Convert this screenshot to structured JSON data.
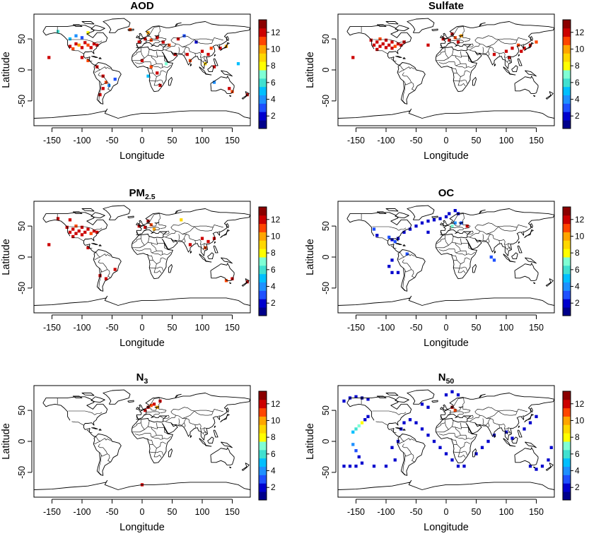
{
  "colorbar": {
    "tick_labels": [
      "2",
      "4",
      "6",
      "8",
      "10",
      "12"
    ],
    "range": [
      1,
      13
    ],
    "colors": [
      "#00008b",
      "#0000cd",
      "#1e50ff",
      "#1e90ff",
      "#00bfff",
      "#40e0d0",
      "#7fffd4",
      "#ffff00",
      "#ffd700",
      "#ffa500",
      "#ff4500",
      "#cc0000",
      "#8b0000"
    ]
  },
  "axes": {
    "xlabel": "Longitude",
    "ylabel": "Latitude",
    "x_ticks": [
      "-150",
      "-100",
      "-50",
      "0",
      "50",
      "100",
      "150"
    ],
    "y_ticks": [
      "50",
      "0",
      "-50"
    ],
    "xlim": [
      -180,
      180
    ],
    "ylim": [
      -90,
      90
    ]
  },
  "chart_data": [
    {
      "type": "heatmap",
      "title": "AOD",
      "title_sub": "",
      "cells": [
        {
          "lon": -120,
          "lat": 38,
          "v": 12
        },
        {
          "lon": -115,
          "lat": 34,
          "v": 11
        },
        {
          "lon": -110,
          "lat": 42,
          "v": 12
        },
        {
          "lon": -105,
          "lat": 40,
          "v": 10
        },
        {
          "lon": -100,
          "lat": 36,
          "v": 12
        },
        {
          "lon": -95,
          "lat": 44,
          "v": 12
        },
        {
          "lon": -90,
          "lat": 40,
          "v": 11
        },
        {
          "lon": -85,
          "lat": 36,
          "v": 12
        },
        {
          "lon": -80,
          "lat": 42,
          "v": 12
        },
        {
          "lon": -75,
          "lat": 40,
          "v": 12
        },
        {
          "lon": -120,
          "lat": 50,
          "v": 5
        },
        {
          "lon": -110,
          "lat": 55,
          "v": 4
        },
        {
          "lon": -100,
          "lat": 52,
          "v": 3
        },
        {
          "lon": -90,
          "lat": 60,
          "v": 8
        },
        {
          "lon": -140,
          "lat": 62,
          "v": 6
        },
        {
          "lon": -100,
          "lat": 20,
          "v": 12
        },
        {
          "lon": -90,
          "lat": 15,
          "v": 11
        },
        {
          "lon": -75,
          "lat": 5,
          "v": 12
        },
        {
          "lon": -65,
          "lat": -10,
          "v": 12
        },
        {
          "lon": -60,
          "lat": -20,
          "v": 11
        },
        {
          "lon": -65,
          "lat": -30,
          "v": 12
        },
        {
          "lon": -70,
          "lat": -40,
          "v": 12
        },
        {
          "lon": -55,
          "lat": -25,
          "v": 4
        },
        {
          "lon": -45,
          "lat": -15,
          "v": 3
        },
        {
          "lon": -5,
          "lat": 45,
          "v": 12
        },
        {
          "lon": 5,
          "lat": 50,
          "v": 12
        },
        {
          "lon": 15,
          "lat": 48,
          "v": 11
        },
        {
          "lon": 25,
          "lat": 52,
          "v": 12
        },
        {
          "lon": 10,
          "lat": 60,
          "v": 10
        },
        {
          "lon": 35,
          "lat": 45,
          "v": 12
        },
        {
          "lon": 45,
          "lat": 40,
          "v": 11
        },
        {
          "lon": 0,
          "lat": 15,
          "v": 12
        },
        {
          "lon": 15,
          "lat": 5,
          "v": 11
        },
        {
          "lon": 25,
          "lat": -5,
          "v": 12
        },
        {
          "lon": 30,
          "lat": -25,
          "v": 12
        },
        {
          "lon": 10,
          "lat": -10,
          "v": 5
        },
        {
          "lon": 40,
          "lat": 10,
          "v": 7
        },
        {
          "lon": 55,
          "lat": 25,
          "v": 12
        },
        {
          "lon": 75,
          "lat": 25,
          "v": 12
        },
        {
          "lon": 80,
          "lat": 15,
          "v": 11
        },
        {
          "lon": 90,
          "lat": 45,
          "v": 2
        },
        {
          "lon": 100,
          "lat": 30,
          "v": 12
        },
        {
          "lon": 110,
          "lat": 25,
          "v": 12
        },
        {
          "lon": 115,
          "lat": 35,
          "v": 11
        },
        {
          "lon": 120,
          "lat": 5,
          "v": 12
        },
        {
          "lon": 105,
          "lat": 10,
          "v": 9
        },
        {
          "lon": 130,
          "lat": 35,
          "v": 12
        },
        {
          "lon": 140,
          "lat": 38,
          "v": 10
        },
        {
          "lon": 145,
          "lat": -30,
          "v": 12
        },
        {
          "lon": 150,
          "lat": -35,
          "v": 11
        },
        {
          "lon": 120,
          "lat": -20,
          "v": 4
        },
        {
          "lon": 175,
          "lat": -40,
          "v": 12
        },
        {
          "lon": -155,
          "lat": 20,
          "v": 12
        },
        {
          "lon": 70,
          "lat": 55,
          "v": 3
        },
        {
          "lon": 60,
          "lat": 50,
          "v": 12
        },
        {
          "lon": -20,
          "lat": 65,
          "v": 11
        },
        {
          "lon": 160,
          "lat": 10,
          "v": 5
        }
      ]
    },
    {
      "type": "heatmap",
      "title": "Sulfate",
      "title_sub": "",
      "cells": [
        {
          "lon": -120,
          "lat": 40,
          "v": 12
        },
        {
          "lon": -115,
          "lat": 45,
          "v": 12
        },
        {
          "lon": -110,
          "lat": 38,
          "v": 12
        },
        {
          "lon": -105,
          "lat": 42,
          "v": 12
        },
        {
          "lon": -100,
          "lat": 36,
          "v": 12
        },
        {
          "lon": -95,
          "lat": 40,
          "v": 12
        },
        {
          "lon": -90,
          "lat": 45,
          "v": 12
        },
        {
          "lon": -85,
          "lat": 38,
          "v": 11
        },
        {
          "lon": -80,
          "lat": 42,
          "v": 12
        },
        {
          "lon": -75,
          "lat": 40,
          "v": 12
        },
        {
          "lon": -70,
          "lat": 45,
          "v": 12
        },
        {
          "lon": -110,
          "lat": 50,
          "v": 11
        },
        {
          "lon": -100,
          "lat": 48,
          "v": 12
        },
        {
          "lon": -90,
          "lat": 35,
          "v": 12
        },
        {
          "lon": -115,
          "lat": 33,
          "v": 12
        },
        {
          "lon": -125,
          "lat": 48,
          "v": 12
        },
        {
          "lon": -5,
          "lat": 50,
          "v": 12
        },
        {
          "lon": 5,
          "lat": 48,
          "v": 12
        },
        {
          "lon": 15,
          "lat": 52,
          "v": 11
        },
        {
          "lon": 10,
          "lat": 58,
          "v": 12
        },
        {
          "lon": 20,
          "lat": 45,
          "v": 12
        },
        {
          "lon": 25,
          "lat": 55,
          "v": 10
        },
        {
          "lon": 100,
          "lat": 30,
          "v": 12
        },
        {
          "lon": 110,
          "lat": 35,
          "v": 12
        },
        {
          "lon": 120,
          "lat": 40,
          "v": 11
        },
        {
          "lon": 125,
          "lat": 30,
          "v": 12
        },
        {
          "lon": 105,
          "lat": 20,
          "v": 12
        },
        {
          "lon": 130,
          "lat": 35,
          "v": 12
        },
        {
          "lon": 80,
          "lat": 25,
          "v": 12
        },
        {
          "lon": -155,
          "lat": 20,
          "v": 12
        },
        {
          "lon": -30,
          "lat": 40,
          "v": 12
        },
        {
          "lon": 140,
          "lat": 40,
          "v": 12
        },
        {
          "lon": 150,
          "lat": 45,
          "v": 11
        }
      ]
    },
    {
      "type": "heatmap",
      "title": "PM",
      "title_sub": "2.5",
      "cells": [
        {
          "lon": -120,
          "lat": 40,
          "v": 12
        },
        {
          "lon": -115,
          "lat": 45,
          "v": 12
        },
        {
          "lon": -110,
          "lat": 38,
          "v": 12
        },
        {
          "lon": -105,
          "lat": 42,
          "v": 12
        },
        {
          "lon": -100,
          "lat": 36,
          "v": 12
        },
        {
          "lon": -95,
          "lat": 40,
          "v": 12
        },
        {
          "lon": -90,
          "lat": 45,
          "v": 12
        },
        {
          "lon": -85,
          "lat": 38,
          "v": 11
        },
        {
          "lon": -80,
          "lat": 42,
          "v": 12
        },
        {
          "lon": -75,
          "lat": 40,
          "v": 12
        },
        {
          "lon": -110,
          "lat": 50,
          "v": 11
        },
        {
          "lon": -100,
          "lat": 48,
          "v": 12
        },
        {
          "lon": -125,
          "lat": 48,
          "v": 12
        },
        {
          "lon": -115,
          "lat": 33,
          "v": 12
        },
        {
          "lon": -120,
          "lat": 60,
          "v": 12
        },
        {
          "lon": -140,
          "lat": 62,
          "v": 12
        },
        {
          "lon": -5,
          "lat": 50,
          "v": 12
        },
        {
          "lon": 5,
          "lat": 48,
          "v": 12
        },
        {
          "lon": 15,
          "lat": 52,
          "v": 11
        },
        {
          "lon": 10,
          "lat": 58,
          "v": 12
        },
        {
          "lon": 20,
          "lat": 45,
          "v": 10
        },
        {
          "lon": 100,
          "lat": 30,
          "v": 12
        },
        {
          "lon": 110,
          "lat": 25,
          "v": 12
        },
        {
          "lon": 120,
          "lat": 30,
          "v": 12
        },
        {
          "lon": 105,
          "lat": 15,
          "v": 11
        },
        {
          "lon": 80,
          "lat": 20,
          "v": 12
        },
        {
          "lon": 65,
          "lat": 60,
          "v": 9
        },
        {
          "lon": -155,
          "lat": 20,
          "v": 12
        },
        {
          "lon": -90,
          "lat": 15,
          "v": 12
        },
        {
          "lon": -45,
          "lat": -20,
          "v": 12
        },
        {
          "lon": -70,
          "lat": -30,
          "v": 12
        },
        {
          "lon": -60,
          "lat": -35,
          "v": 12
        },
        {
          "lon": 150,
          "lat": -35,
          "v": 12
        },
        {
          "lon": 140,
          "lat": -38,
          "v": 11
        },
        {
          "lon": 175,
          "lat": -40,
          "v": 12
        }
      ]
    },
    {
      "type": "heatmap",
      "title": "OC",
      "title_sub": "",
      "cells": [
        {
          "lon": -95,
          "lat": 32,
          "v": 3
        },
        {
          "lon": -90,
          "lat": 28,
          "v": 2
        },
        {
          "lon": -85,
          "lat": 25,
          "v": 3
        },
        {
          "lon": -80,
          "lat": 30,
          "v": 2
        },
        {
          "lon": -70,
          "lat": 40,
          "v": 2
        },
        {
          "lon": -60,
          "lat": 45,
          "v": 2
        },
        {
          "lon": -50,
          "lat": 50,
          "v": 2
        },
        {
          "lon": -40,
          "lat": 55,
          "v": 2
        },
        {
          "lon": -30,
          "lat": 58,
          "v": 2
        },
        {
          "lon": -20,
          "lat": 60,
          "v": 2
        },
        {
          "lon": -10,
          "lat": 62,
          "v": 2
        },
        {
          "lon": 0,
          "lat": 65,
          "v": 2
        },
        {
          "lon": 5,
          "lat": 70,
          "v": 2
        },
        {
          "lon": 15,
          "lat": 75,
          "v": 2
        },
        {
          "lon": 20,
          "lat": 70,
          "v": 2
        },
        {
          "lon": -90,
          "lat": -5,
          "v": 2
        },
        {
          "lon": -95,
          "lat": -15,
          "v": 2
        },
        {
          "lon": -90,
          "lat": -25,
          "v": 2
        },
        {
          "lon": -80,
          "lat": -25,
          "v": 2
        },
        {
          "lon": 75,
          "lat": 0,
          "v": 3
        },
        {
          "lon": 80,
          "lat": -5,
          "v": 3
        },
        {
          "lon": 10,
          "lat": 50,
          "v": 7
        },
        {
          "lon": 15,
          "lat": 55,
          "v": 4
        },
        {
          "lon": 25,
          "lat": 55,
          "v": 3
        },
        {
          "lon": -120,
          "lat": 45,
          "v": 3
        },
        {
          "lon": -115,
          "lat": 35,
          "v": 2
        },
        {
          "lon": -65,
          "lat": 5,
          "v": 3
        },
        {
          "lon": -30,
          "lat": 40,
          "v": 2
        },
        {
          "lon": 35,
          "lat": 50,
          "v": 12
        }
      ]
    },
    {
      "type": "heatmap",
      "title": "N",
      "title_sub": "3",
      "cells": [
        {
          "lon": 10,
          "lat": 55,
          "v": 12
        },
        {
          "lon": 15,
          "lat": 58,
          "v": 11
        },
        {
          "lon": 5,
          "lat": 50,
          "v": 12
        },
        {
          "lon": 20,
          "lat": 60,
          "v": 12
        },
        {
          "lon": 25,
          "lat": 55,
          "v": 10
        },
        {
          "lon": 0,
          "lat": -70,
          "v": 12
        },
        {
          "lon": 30,
          "lat": 65,
          "v": 12
        }
      ]
    },
    {
      "type": "heatmap",
      "title": "N",
      "title_sub": "50",
      "cells": [
        {
          "lon": -170,
          "lat": 65,
          "v": 2
        },
        {
          "lon": -160,
          "lat": 70,
          "v": 2
        },
        {
          "lon": -150,
          "lat": 72,
          "v": 2
        },
        {
          "lon": -140,
          "lat": 70,
          "v": 1
        },
        {
          "lon": -130,
          "lat": 68,
          "v": 2
        },
        {
          "lon": -155,
          "lat": 15,
          "v": 5
        },
        {
          "lon": -150,
          "lat": 20,
          "v": 6
        },
        {
          "lon": -145,
          "lat": 25,
          "v": 7
        },
        {
          "lon": -140,
          "lat": 30,
          "v": 8
        },
        {
          "lon": -135,
          "lat": 35,
          "v": 2
        },
        {
          "lon": -130,
          "lat": 40,
          "v": 2
        },
        {
          "lon": -155,
          "lat": -5,
          "v": 4
        },
        {
          "lon": -150,
          "lat": -15,
          "v": 3
        },
        {
          "lon": -145,
          "lat": -25,
          "v": 2
        },
        {
          "lon": -140,
          "lat": -35,
          "v": 2
        },
        {
          "lon": -170,
          "lat": -40,
          "v": 2
        },
        {
          "lon": -160,
          "lat": -40,
          "v": 2
        },
        {
          "lon": -150,
          "lat": -40,
          "v": 2
        },
        {
          "lon": -120,
          "lat": -40,
          "v": 2
        },
        {
          "lon": -100,
          "lat": -40,
          "v": 2
        },
        {
          "lon": -90,
          "lat": -10,
          "v": 2
        },
        {
          "lon": -85,
          "lat": -30,
          "v": 2
        },
        {
          "lon": -80,
          "lat": 0,
          "v": 2
        },
        {
          "lon": -75,
          "lat": 20,
          "v": 2
        },
        {
          "lon": -70,
          "lat": 30,
          "v": 2
        },
        {
          "lon": -60,
          "lat": 35,
          "v": 2
        },
        {
          "lon": -50,
          "lat": 30,
          "v": 2
        },
        {
          "lon": -40,
          "lat": 20,
          "v": 2
        },
        {
          "lon": -30,
          "lat": 10,
          "v": 2
        },
        {
          "lon": -20,
          "lat": 0,
          "v": 2
        },
        {
          "lon": -10,
          "lat": -10,
          "v": 2
        },
        {
          "lon": 0,
          "lat": -20,
          "v": 2
        },
        {
          "lon": 10,
          "lat": -30,
          "v": 2
        },
        {
          "lon": 20,
          "lat": -40,
          "v": 2
        },
        {
          "lon": 30,
          "lat": -40,
          "v": 2
        },
        {
          "lon": 50,
          "lat": -20,
          "v": 2
        },
        {
          "lon": 60,
          "lat": -10,
          "v": 2
        },
        {
          "lon": 70,
          "lat": 0,
          "v": 2
        },
        {
          "lon": 80,
          "lat": 10,
          "v": 2
        },
        {
          "lon": 130,
          "lat": 20,
          "v": 2
        },
        {
          "lon": 140,
          "lat": 30,
          "v": 2
        },
        {
          "lon": 150,
          "lat": 40,
          "v": 2
        },
        {
          "lon": 140,
          "lat": -40,
          "v": 2
        },
        {
          "lon": 150,
          "lat": -45,
          "v": 2
        },
        {
          "lon": 160,
          "lat": -40,
          "v": 2
        },
        {
          "lon": 170,
          "lat": -30,
          "v": 2
        },
        {
          "lon": 175,
          "lat": -10,
          "v": 2
        },
        {
          "lon": 10,
          "lat": 55,
          "v": 12
        },
        {
          "lon": 15,
          "lat": 50,
          "v": 11
        },
        {
          "lon": 0,
          "lat": 75,
          "v": 2
        },
        {
          "lon": 10,
          "lat": 80,
          "v": 2
        },
        {
          "lon": 20,
          "lat": 75,
          "v": 2
        },
        {
          "lon": 100,
          "lat": 15,
          "v": 2
        },
        {
          "lon": 110,
          "lat": 5,
          "v": 2
        },
        {
          "lon": -40,
          "lat": 60,
          "v": 2
        },
        {
          "lon": -30,
          "lat": 55,
          "v": 2
        }
      ]
    }
  ]
}
